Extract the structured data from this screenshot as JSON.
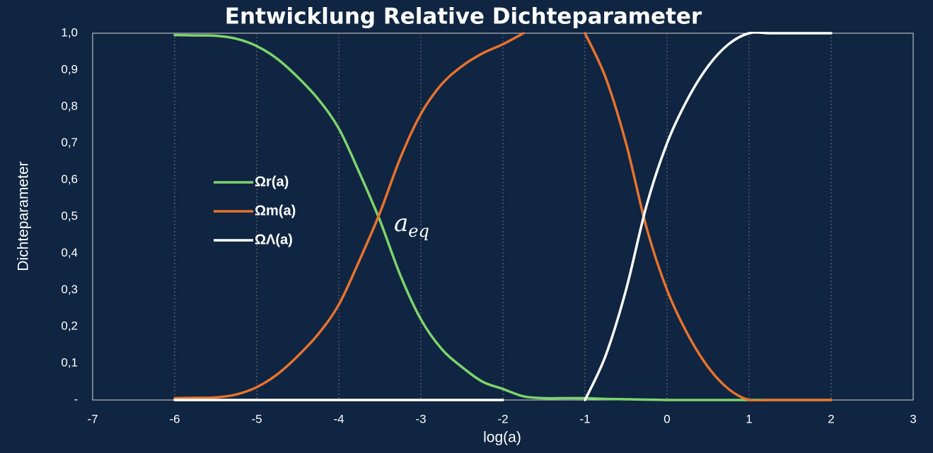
{
  "chart_data": {
    "type": "line",
    "title": "Entwicklung Relative Dichteparameter",
    "x_label": "log(a)",
    "y_label": "Dichteparameter",
    "xlim": [
      -7,
      3
    ],
    "xticks": [
      -7,
      -6,
      -5,
      -4,
      -3,
      -2,
      -1,
      0,
      1,
      2,
      3
    ],
    "ylim": [
      0,
      1
    ],
    "yticks": [
      {
        "value": 0,
        "label": "-"
      },
      {
        "value": 0.1,
        "label": "0,1"
      },
      {
        "value": 0.2,
        "label": "0,2"
      },
      {
        "value": 0.3,
        "label": "0,3"
      },
      {
        "value": 0.4,
        "label": "0,4"
      },
      {
        "value": 0.5,
        "label": "0,5"
      },
      {
        "value": 0.6,
        "label": "0,6"
      },
      {
        "value": 0.7,
        "label": "0,7"
      },
      {
        "value": 0.8,
        "label": "0,8"
      },
      {
        "value": 0.9,
        "label": "0,9"
      },
      {
        "value": 1,
        "label": "1,0"
      }
    ],
    "grid": "x",
    "legend": "left",
    "annotation": {
      "text": "a",
      "subscript": "eq"
    },
    "x": [
      -6,
      -5.75,
      -5.5,
      -5.25,
      -5,
      -4.75,
      -4.5,
      -4.25,
      -4,
      -3.75,
      -3.5,
      -3.25,
      -3,
      -2.75,
      -2.5,
      -2.25,
      -2,
      -1.75,
      -1.5,
      -1.25,
      -1,
      -0.75,
      -0.5,
      -0.25,
      0,
      0.25,
      0.5,
      0.75,
      1,
      1.25,
      1.5,
      1.75,
      2
    ],
    "series": [
      {
        "name": "Ωr(a)",
        "color": "#7ed36b",
        "values": [
          0.995,
          0.994,
          0.993,
          0.985,
          0.965,
          0.93,
          0.88,
          0.82,
          0.74,
          0.62,
          0.49,
          0.34,
          0.22,
          0.14,
          0.09,
          0.05,
          0.03,
          0.01,
          0.005,
          0.005,
          0.005,
          0.003,
          0.002,
          0.001,
          0,
          0,
          0,
          0,
          0,
          0,
          0,
          0,
          0
        ]
      },
      {
        "name": "Ωm(a)",
        "color": "#e8722d",
        "values": [
          0.005,
          0.006,
          0.007,
          0.015,
          0.035,
          0.07,
          0.12,
          0.18,
          0.26,
          0.38,
          0.51,
          0.66,
          0.78,
          0.86,
          0.91,
          0.945,
          0.97,
          1.0,
          null,
          null,
          1.0,
          0.88,
          0.7,
          0.47,
          0.3,
          0.18,
          0.09,
          0.03,
          0,
          0,
          0,
          0,
          0
        ]
      },
      {
        "name": "ΩΛ(a)",
        "color": "#ffffff",
        "values": [
          0,
          0,
          0,
          0,
          0,
          0,
          0,
          0,
          0,
          0,
          0,
          0,
          0,
          0,
          0,
          0,
          0,
          null,
          null,
          null,
          0,
          0.12,
          0.3,
          0.53,
          0.7,
          0.82,
          0.91,
          0.97,
          1.0,
          1.0,
          1.0,
          1.0,
          1.0
        ]
      }
    ]
  }
}
